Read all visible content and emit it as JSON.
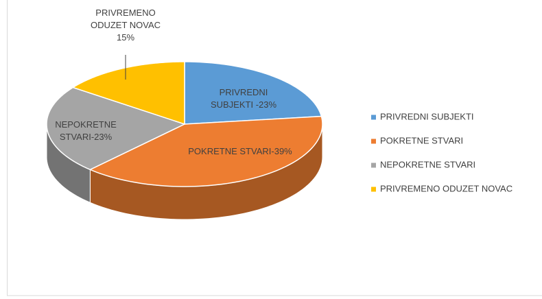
{
  "chart_data": {
    "type": "pie3d",
    "categories": [
      "PRIVREDNI SUBJEKTI",
      "POKRETNE STVARI",
      "NEPOKRETNE STVARI",
      "PRIVREMENO ODUZET NOVAC"
    ],
    "values": [
      23,
      39,
      23,
      15
    ],
    "value_labels": [
      "PRIVREDNI SUBJEKTI -23%",
      "POKRETNE STVARI-39%",
      "NEPOKRETNE STVARI-23%",
      "PRIVREMENO ODUZET NOVAC 15%"
    ],
    "colors": [
      "#5b9bd5",
      "#ed7d31",
      "#a5a5a5",
      "#ffc000"
    ],
    "legend": "right"
  }
}
